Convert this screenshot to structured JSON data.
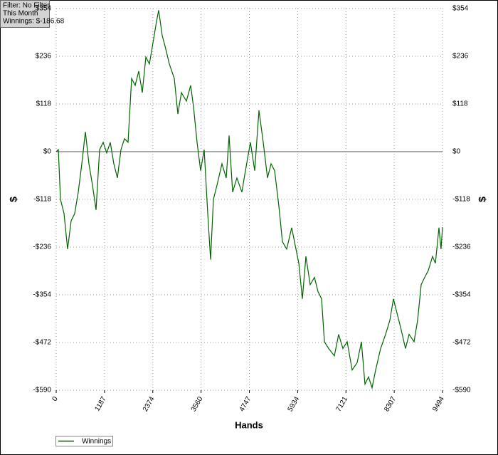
{
  "chart_data": {
    "type": "line",
    "info": [
      "Filter: No Filter",
      "This Month",
      "Winnings: $-186.68"
    ],
    "xlabel": "Hands",
    "ylabel": "$",
    "y2label": "$",
    "x": [
      0,
      52,
      105,
      192,
      280,
      367,
      455,
      542,
      629,
      717,
      804,
      892,
      979,
      1067,
      1154,
      1241,
      1329,
      1416,
      1504,
      1591,
      1678,
      1766,
      1853,
      1941,
      2028,
      2115,
      2203,
      2290,
      2378,
      2465,
      2518,
      2605,
      2675,
      2780,
      2902,
      2990,
      3077,
      3200,
      3304,
      3374,
      3462,
      3549,
      3637,
      3724,
      3794,
      3864,
      3951,
      4074,
      4179,
      4249,
      4336,
      4441,
      4563,
      4651,
      4773,
      4878,
      4983,
      5088,
      5193,
      5280,
      5368,
      5473,
      5560,
      5665,
      5787,
      5875,
      5962,
      6049,
      6137,
      6242,
      6347,
      6434,
      6522,
      6591,
      6696,
      6836,
      6941,
      7046,
      7151,
      7273,
      7396,
      7501,
      7588,
      7675,
      7763,
      7850,
      7973,
      8095,
      8200,
      8287,
      8375,
      8462,
      8585,
      8672,
      8794,
      8882,
      8969,
      9056,
      9144,
      9249,
      9319,
      9406,
      9458,
      9494
    ],
    "series": [
      {
        "name": "Winnings",
        "color": "#006400",
        "values": [
          0,
          5,
          -118,
          -153,
          -241,
          -171,
          -153,
          -100,
          -30,
          49,
          -30,
          -83,
          -144,
          5,
          23,
          -3,
          23,
          -30,
          -65,
          5,
          32,
          23,
          181,
          164,
          199,
          146,
          234,
          217,
          269,
          322,
          350,
          287,
          261,
          217,
          181,
          93,
          146,
          125,
          164,
          111,
          23,
          -47,
          5,
          -153,
          -267,
          -118,
          -83,
          -30,
          -65,
          40,
          -100,
          -65,
          -100,
          -47,
          23,
          -47,
          102,
          23,
          -65,
          -30,
          -47,
          -135,
          -223,
          -241,
          -188,
          -232,
          -276,
          -364,
          -259,
          -329,
          -311,
          -346,
          -364,
          -470,
          -487,
          -505,
          -452,
          -487,
          -470,
          -540,
          -522,
          -470,
          -575,
          -557,
          -584,
          -540,
          -487,
          -452,
          -417,
          -364,
          -399,
          -434,
          -487,
          -452,
          -470,
          -417,
          -329,
          -311,
          -294,
          -259,
          -276,
          -188,
          -241,
          -187
        ]
      }
    ],
    "xlim": [
      0,
      9494
    ],
    "xticks": [
      0,
      1187,
      2374,
      3560,
      4747,
      5934,
      7121,
      8307,
      9494
    ],
    "ylim": [
      -590,
      354
    ],
    "yticks": [
      {
        "value": -590,
        "label": "-$590"
      },
      {
        "value": -472,
        "label": "-$472"
      },
      {
        "value": -354,
        "label": "-$354"
      },
      {
        "value": -236,
        "label": "-$236"
      },
      {
        "value": -118,
        "label": "-$118"
      },
      {
        "value": 0,
        "label": "$0"
      },
      {
        "value": 118,
        "label": "$118"
      },
      {
        "value": 236,
        "label": "$236"
      },
      {
        "value": 354,
        "label": "$354"
      }
    ],
    "grid": true,
    "legend": "bottom-left"
  }
}
